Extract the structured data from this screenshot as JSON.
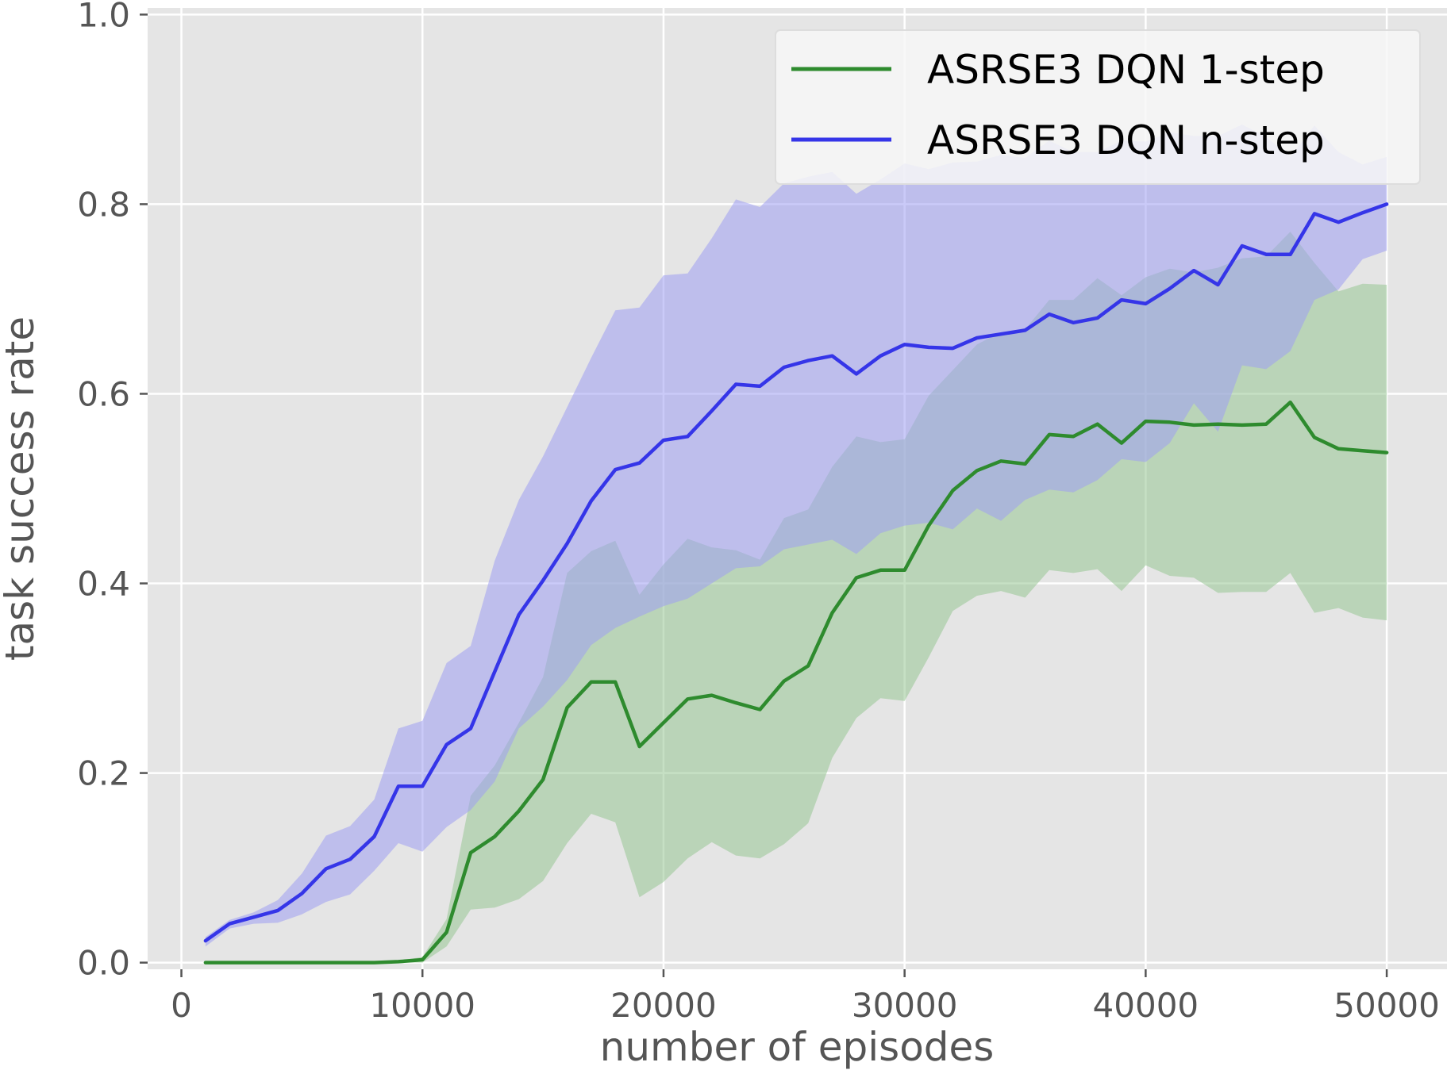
{
  "chart_data": {
    "type": "line",
    "title": "",
    "xlabel": "number of episodes",
    "ylabel": "task success rate",
    "xlim": [
      -1400,
      52500
    ],
    "ylim": [
      -0.007,
      1.007
    ],
    "xticks": [
      0,
      10000,
      20000,
      30000,
      40000,
      50000
    ],
    "yticks": [
      0.0,
      0.2,
      0.4,
      0.6,
      0.8,
      1.0
    ],
    "xtick_labels": [
      "0",
      "10000",
      "20000",
      "30000",
      "40000",
      "50000"
    ],
    "ytick_labels": [
      "0.0",
      "0.2",
      "0.4",
      "0.6",
      "0.8",
      "1.0"
    ],
    "grid": true,
    "legend_position": "upper-right",
    "x": [
      1000,
      2000,
      3000,
      4000,
      5000,
      6000,
      7000,
      8000,
      9000,
      10000,
      11000,
      12000,
      13000,
      14000,
      15000,
      16000,
      17000,
      18000,
      19000,
      20000,
      21000,
      22000,
      23000,
      24000,
      25000,
      26000,
      27000,
      28000,
      29000,
      30000,
      31000,
      32000,
      33000,
      34000,
      35000,
      36000,
      37000,
      38000,
      39000,
      40000,
      41000,
      42000,
      43000,
      44000,
      45000,
      46000,
      47000,
      48000,
      49000,
      50000
    ],
    "series": [
      {
        "name": "ASRSE3 DQN 1-step",
        "color": "#2e8b2e",
        "band_color": "#97c793",
        "values": [
          0.0,
          0.0,
          0.0,
          0.0,
          0.0,
          0.0,
          0.0,
          0.0,
          0.001,
          0.003,
          0.032,
          0.116,
          0.133,
          0.16,
          0.193,
          0.269,
          0.296,
          0.296,
          0.228,
          0.253,
          0.278,
          0.282,
          0.274,
          0.267,
          0.297,
          0.313,
          0.369,
          0.406,
          0.414,
          0.414,
          0.461,
          0.498,
          0.519,
          0.529,
          0.526,
          0.557,
          0.555,
          0.568,
          0.548,
          0.571,
          0.57,
          0.567,
          0.568,
          0.567,
          0.568,
          0.591,
          0.554,
          0.542,
          0.54,
          0.538
        ],
        "lower": [
          0.0,
          0.0,
          0.0,
          0.0,
          0.0,
          0.0,
          0.0,
          0.0,
          0.0,
          0.0,
          0.017,
          0.056,
          0.058,
          0.067,
          0.086,
          0.126,
          0.157,
          0.148,
          0.069,
          0.085,
          0.11,
          0.127,
          0.113,
          0.11,
          0.125,
          0.147,
          0.216,
          0.258,
          0.279,
          0.276,
          0.322,
          0.371,
          0.387,
          0.392,
          0.385,
          0.414,
          0.411,
          0.415,
          0.392,
          0.419,
          0.408,
          0.406,
          0.39,
          0.391,
          0.391,
          0.411,
          0.369,
          0.374,
          0.364,
          0.361
        ],
        "upper": [
          0.0,
          0.0,
          0.0,
          0.0,
          0.0,
          0.0,
          0.0,
          0.0,
          0.002,
          0.006,
          0.046,
          0.176,
          0.208,
          0.253,
          0.301,
          0.411,
          0.434,
          0.445,
          0.388,
          0.42,
          0.447,
          0.438,
          0.435,
          0.425,
          0.469,
          0.478,
          0.523,
          0.555,
          0.549,
          0.552,
          0.598,
          0.625,
          0.652,
          0.665,
          0.668,
          0.699,
          0.699,
          0.722,
          0.704,
          0.723,
          0.732,
          0.728,
          0.733,
          0.743,
          0.745,
          0.771,
          0.738,
          0.708,
          0.716,
          0.715
        ]
      },
      {
        "name": "ASRSE3 DQN n-step",
        "color": "#3535e8",
        "band_color": "#9e9ff2",
        "values": [
          0.023,
          0.041,
          0.048,
          0.055,
          0.073,
          0.099,
          0.109,
          0.133,
          0.186,
          0.186,
          0.23,
          0.247,
          0.307,
          0.367,
          0.403,
          0.442,
          0.487,
          0.52,
          0.527,
          0.551,
          0.555,
          0.582,
          0.61,
          0.608,
          0.628,
          0.635,
          0.64,
          0.621,
          0.64,
          0.652,
          0.649,
          0.648,
          0.659,
          0.663,
          0.667,
          0.684,
          0.675,
          0.68,
          0.699,
          0.695,
          0.711,
          0.73,
          0.715,
          0.756,
          0.747,
          0.747,
          0.79,
          0.781,
          0.791,
          0.8
        ],
        "lower": [
          0.017,
          0.036,
          0.041,
          0.042,
          0.051,
          0.064,
          0.072,
          0.097,
          0.126,
          0.117,
          0.143,
          0.161,
          0.191,
          0.247,
          0.27,
          0.298,
          0.335,
          0.353,
          0.365,
          0.376,
          0.384,
          0.4,
          0.416,
          0.418,
          0.436,
          0.441,
          0.446,
          0.431,
          0.453,
          0.461,
          0.464,
          0.457,
          0.479,
          0.466,
          0.488,
          0.499,
          0.496,
          0.509,
          0.531,
          0.528,
          0.548,
          0.59,
          0.56,
          0.63,
          0.626,
          0.645,
          0.699,
          0.71,
          0.742,
          0.751
        ],
        "upper": [
          0.027,
          0.045,
          0.053,
          0.066,
          0.094,
          0.134,
          0.144,
          0.172,
          0.247,
          0.255,
          0.316,
          0.334,
          0.424,
          0.488,
          0.534,
          0.586,
          0.638,
          0.688,
          0.691,
          0.725,
          0.727,
          0.764,
          0.805,
          0.797,
          0.822,
          0.829,
          0.834,
          0.811,
          0.826,
          0.843,
          0.837,
          0.844,
          0.845,
          0.852,
          0.849,
          0.867,
          0.855,
          0.855,
          0.867,
          0.866,
          0.876,
          0.872,
          0.872,
          0.884,
          0.871,
          0.85,
          0.883,
          0.855,
          0.842,
          0.85
        ]
      }
    ]
  }
}
